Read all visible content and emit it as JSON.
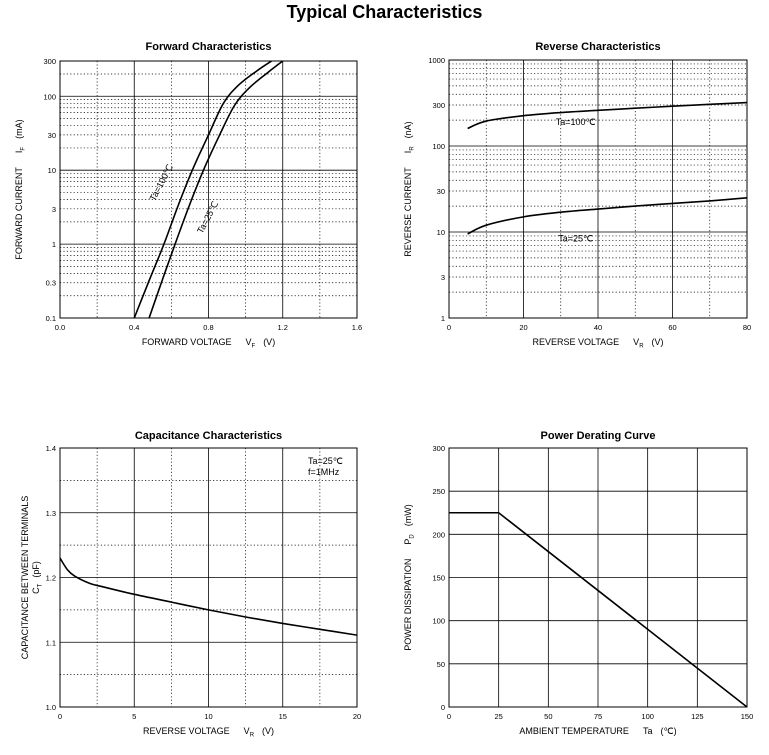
{
  "page_title": "Typical Characteristics",
  "chart_data": [
    {
      "id": "forward",
      "type": "line",
      "title": "Forward    Characteristics",
      "xlabel": "FORWARD VOLTAGE",
      "xlabel_symbol": "V",
      "xlabel_subscript": "F",
      "xlabel_unit": "(V)",
      "ylabel": "FORWARD CURRENT",
      "ylabel_symbol": "I",
      "ylabel_subscript": "F",
      "ylabel_unit": "(mA)",
      "xlim": [
        0,
        1.6
      ],
      "ylim": [
        0.1,
        300
      ],
      "yscale": "log",
      "x_ticks": [
        "0.0",
        "0.4",
        "0.8",
        "1.2",
        "1.6"
      ],
      "y_ticks": [
        {
          "label": "0.1",
          "value": 0.1
        },
        {
          "label": "0.3",
          "value": 0.3
        },
        {
          "label": "1",
          "value": 1
        },
        {
          "label": "3",
          "value": 3
        },
        {
          "label": "10",
          "value": 10
        },
        {
          "label": "30",
          "value": 30
        },
        {
          "label": "100",
          "value": 100
        },
        {
          "label": "300",
          "value": 300
        }
      ],
      "series": [
        {
          "name": "Ta=100℃",
          "x": [
            0.4,
            0.48,
            0.56,
            0.64,
            0.72,
            0.8,
            0.88,
            0.96,
            1.06,
            1.14
          ],
          "y": [
            0.1,
            0.32,
            1.0,
            3.5,
            11,
            30,
            80,
            140,
            220,
            300
          ]
        },
        {
          "name": "Ta=25℃",
          "x": [
            0.48,
            0.55,
            0.62,
            0.7,
            0.78,
            0.86,
            0.94,
            1.02,
            1.12,
            1.2
          ],
          "y": [
            0.1,
            0.32,
            1.0,
            3.5,
            11,
            30,
            75,
            130,
            210,
            300
          ]
        }
      ],
      "grid": true
    },
    {
      "id": "reverse",
      "type": "line",
      "title": "Reverse    Characteristics",
      "xlabel": "REVERSE VOLTAGE",
      "xlabel_symbol": "V",
      "xlabel_subscript": "R",
      "xlabel_unit": "(V)",
      "ylabel": "REVERSE CURRENT",
      "ylabel_symbol": "I",
      "ylabel_subscript": "R",
      "ylabel_unit": "(nA)",
      "xlim": [
        0,
        80
      ],
      "ylim": [
        1,
        1000
      ],
      "yscale": "log",
      "x_ticks": [
        "0",
        "20",
        "40",
        "60",
        "80"
      ],
      "y_ticks": [
        {
          "label": "1",
          "value": 1
        },
        {
          "label": "3",
          "value": 3
        },
        {
          "label": "10",
          "value": 10
        },
        {
          "label": "30",
          "value": 30
        },
        {
          "label": "100",
          "value": 100
        },
        {
          "label": "300",
          "value": 300
        },
        {
          "label": "1000",
          "value": 1000
        }
      ],
      "series": [
        {
          "name": "Ta=100℃",
          "x": [
            5,
            10,
            20,
            30,
            40,
            50,
            60,
            70,
            80
          ],
          "y": [
            160,
            195,
            225,
            245,
            260,
            275,
            290,
            305,
            320
          ]
        },
        {
          "name": "Ta=25℃",
          "x": [
            5,
            10,
            20,
            30,
            40,
            50,
            60,
            70,
            80
          ],
          "y": [
            9.5,
            12,
            15,
            17,
            18.5,
            20,
            21.5,
            23,
            25
          ]
        }
      ],
      "grid": true
    },
    {
      "id": "capacitance",
      "type": "line",
      "title": "Capacitance Characteristics",
      "xlabel": "REVERSE VOLTAGE",
      "xlabel_symbol": "V",
      "xlabel_subscript": "R",
      "xlabel_unit": "(V)",
      "ylabel": "CAPACITANCE BETWEEN TERMINALS",
      "ylabel_symbol": "C",
      "ylabel_subscript": "T",
      "ylabel_unit": "(pF)",
      "annotation": [
        "Ta=25℃",
        "f=1MHz"
      ],
      "xlim": [
        0,
        20
      ],
      "ylim": [
        1.0,
        1.4
      ],
      "yscale": "linear",
      "x_ticks": [
        "0",
        "5",
        "10",
        "15",
        "20"
      ],
      "y_ticks": [
        {
          "label": "1.0",
          "value": 1.0
        },
        {
          "label": "1.1",
          "value": 1.1
        },
        {
          "label": "1.2",
          "value": 1.2
        },
        {
          "label": "1.3",
          "value": 1.3
        },
        {
          "label": "1.4",
          "value": 1.4
        }
      ],
      "series": [
        {
          "x": [
            0,
            0.5,
            1,
            2,
            3,
            5,
            7.5,
            10,
            12.5,
            15,
            17.5,
            20
          ],
          "y": [
            1.23,
            1.212,
            1.202,
            1.191,
            1.185,
            1.174,
            1.162,
            1.15,
            1.139,
            1.129,
            1.12,
            1.111
          ]
        }
      ],
      "grid": true
    },
    {
      "id": "derating",
      "type": "line",
      "title": "Power Derating Curve",
      "xlabel": "AMBIENT TEMPERATURE",
      "xlabel_symbol": "Ta",
      "xlabel_unit": "(℃)",
      "ylabel": "POWER DISSIPATION",
      "ylabel_symbol": "P",
      "ylabel_subscript": "D",
      "ylabel_unit": "(mW)",
      "xlim": [
        0,
        150
      ],
      "ylim": [
        0,
        300
      ],
      "yscale": "linear",
      "x_ticks": [
        "0",
        "25",
        "50",
        "75",
        "100",
        "125",
        "150"
      ],
      "y_ticks": [
        {
          "label": "0",
          "value": 0
        },
        {
          "label": "50",
          "value": 50
        },
        {
          "label": "100",
          "value": 100
        },
        {
          "label": "150",
          "value": 150
        },
        {
          "label": "200",
          "value": 200
        },
        {
          "label": "250",
          "value": 250
        },
        {
          "label": "300",
          "value": 300
        }
      ],
      "series": [
        {
          "x": [
            0,
            25,
            150
          ],
          "y": [
            225,
            225,
            0
          ]
        }
      ],
      "grid": true
    }
  ]
}
